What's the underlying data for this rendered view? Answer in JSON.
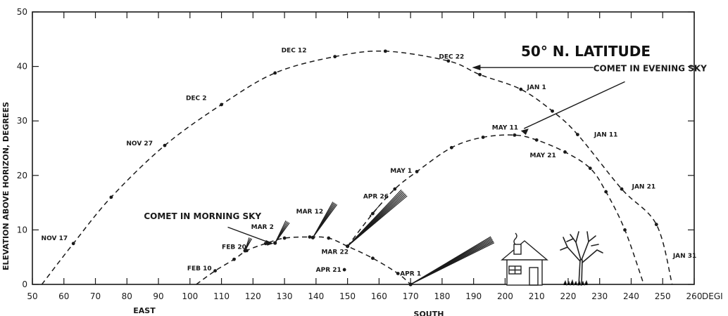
{
  "chart_data": {
    "type": "line",
    "title": "50° N. LATITUDE",
    "ylabel": "ELEVATION ABOVE HORIZON, DEGREES",
    "x_unit": "DEGI",
    "direction_labels": [
      "EAST",
      "SOUTH"
    ],
    "xlim": [
      50,
      260
    ],
    "ylim": [
      0,
      50
    ],
    "x_ticks": [
      50,
      60,
      70,
      80,
      90,
      100,
      110,
      120,
      130,
      140,
      150,
      160,
      170,
      180,
      190,
      200,
      210,
      220,
      230,
      240,
      250,
      260
    ],
    "x_tick_labels": [
      "50",
      "60",
      "70",
      "80",
      "90",
      "100",
      "110",
      "120",
      "130",
      "140",
      "150",
      "160",
      "170",
      "180",
      "190",
      "200",
      "210",
      "220",
      "230",
      "240",
      "250",
      "260"
    ],
    "y_ticks": [
      0,
      10,
      20,
      30,
      40,
      50
    ],
    "y_tick_labels": [
      "0",
      "10",
      "20",
      "30",
      "40",
      "50"
    ],
    "series": [
      {
        "key": "winter",
        "points": [
          [
            53,
            0
          ],
          [
            63,
            7.5
          ],
          [
            75,
            16
          ],
          [
            92,
            25.5
          ],
          [
            110,
            33
          ],
          [
            127,
            38.8
          ],
          [
            146,
            41.8
          ],
          [
            162,
            42.8
          ],
          [
            182,
            41
          ],
          [
            192,
            38.5
          ],
          [
            205,
            35.8
          ],
          [
            215,
            31.8
          ],
          [
            223,
            27.5
          ],
          [
            237,
            17.5
          ],
          [
            248,
            11
          ],
          [
            253,
            0
          ]
        ]
      },
      {
        "key": "spring_morning",
        "points": [
          [
            102,
            0
          ],
          [
            108,
            2.5
          ],
          [
            114,
            4.6
          ],
          [
            118,
            6.2
          ],
          [
            124,
            7.5
          ],
          [
            130,
            8.5
          ],
          [
            138,
            8.7
          ],
          [
            144,
            8.5
          ],
          [
            150,
            7
          ],
          [
            158,
            4.8
          ],
          [
            166,
            2
          ],
          [
            170,
            0
          ]
        ]
      },
      {
        "key": "spring_evening",
        "points": [
          [
            150,
            7
          ],
          [
            158,
            13
          ],
          [
            165,
            17.5
          ],
          [
            172,
            20.7
          ],
          [
            183,
            25.1
          ],
          [
            193,
            27
          ],
          [
            203,
            27.4
          ],
          [
            210,
            26.5
          ],
          [
            219,
            24.3
          ],
          [
            227,
            21.3
          ],
          [
            232,
            17
          ],
          [
            238,
            10
          ],
          [
            244,
            0
          ]
        ]
      }
    ],
    "markers": [
      [
        149,
        2.7
      ]
    ],
    "date_labels": [
      {
        "text": "NOV 17",
        "x": 57,
        "y": 8.1
      },
      {
        "text": "NOV 27",
        "x": 84,
        "y": 25.5
      },
      {
        "text": "DEC 2",
        "x": 102,
        "y": 33.8
      },
      {
        "text": "DEC 12",
        "x": 133,
        "y": 42.6
      },
      {
        "text": "DEC 22",
        "x": 183,
        "y": 41.4
      },
      {
        "text": "JAN 1",
        "x": 210,
        "y": 35.8
      },
      {
        "text": "JAN 11",
        "x": 232,
        "y": 27.1
      },
      {
        "text": "JAN 21",
        "x": 244,
        "y": 17.6
      },
      {
        "text": "JAN 31",
        "x": 257,
        "y": 4.9
      },
      {
        "text": "FEB 10",
        "x": 103,
        "y": 2.6
      },
      {
        "text": "FEB 20",
        "x": 114,
        "y": 6.5
      },
      {
        "text": "MAR 2",
        "x": 123,
        "y": 10.2
      },
      {
        "text": "MAR 12",
        "x": 138,
        "y": 13
      },
      {
        "text": "MAR 22",
        "x": 146,
        "y": 5.6
      },
      {
        "text": "APR 1",
        "x": 170,
        "y": 1.6
      },
      {
        "text": "APR 21",
        "x": 144,
        "y": 2.3
      },
      {
        "text": "APR 26",
        "x": 159,
        "y": 15.8
      },
      {
        "text": "MAY 1",
        "x": 167,
        "y": 20.5
      },
      {
        "text": "MAY 11",
        "x": 200,
        "y": 28.4
      },
      {
        "text": "MAY 21",
        "x": 212,
        "y": 23.3
      }
    ],
    "annotations": [
      {
        "text": "COMET IN EVENING SKY",
        "x": 228,
        "y": 39.1
      },
      {
        "text": "COMET IN MORNING SKY",
        "x": 104,
        "y": 12
      }
    ],
    "grid": false,
    "legend": "none"
  }
}
